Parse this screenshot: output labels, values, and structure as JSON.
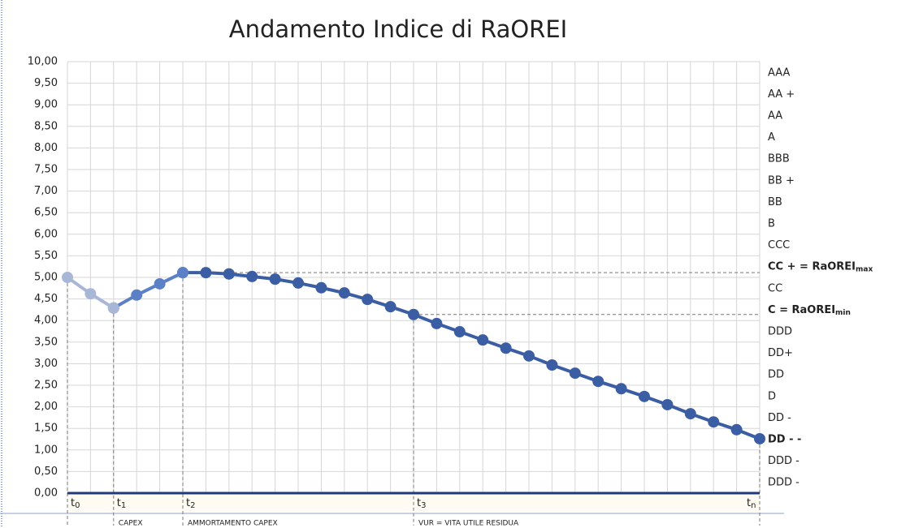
{
  "chart_data": {
    "type": "line",
    "title": "Andamento Indice di RaOREI",
    "categories": [
      null,
      null,
      null,
      null,
      null,
      null,
      null,
      null,
      null,
      null,
      null,
      null,
      null,
      null,
      null,
      null,
      null,
      null,
      null,
      null,
      null,
      null,
      null,
      null,
      null,
      null,
      null,
      null,
      null,
      null,
      null
    ],
    "series": [
      {
        "color": "#a9b7d6",
        "values": [
          5.0,
          4.62,
          4.29,
          null,
          null,
          null,
          null,
          null,
          null,
          null,
          null,
          null,
          null,
          null,
          null,
          null,
          null,
          null,
          null,
          null,
          null,
          null,
          null,
          null,
          null,
          null,
          null,
          null,
          null,
          null,
          null
        ]
      },
      {
        "color": "#5c80c6",
        "values": [
          null,
          null,
          4.29,
          4.59,
          4.85,
          5.11,
          null,
          null,
          null,
          null,
          null,
          null,
          null,
          null,
          null,
          null,
          null,
          null,
          null,
          null,
          null,
          null,
          null,
          null,
          null,
          null,
          null,
          null,
          null,
          null,
          null
        ]
      },
      {
        "color": "#3b5da3",
        "values": [
          null,
          null,
          null,
          null,
          null,
          5.11,
          5.11,
          5.08,
          5.02,
          4.96,
          4.87,
          4.76,
          4.64,
          4.49,
          4.32,
          4.14,
          3.93,
          3.74,
          3.55,
          3.36,
          3.18,
          2.97,
          2.78,
          2.59,
          2.42,
          2.24,
          2.05,
          1.84,
          1.65,
          1.47,
          1.26
        ]
      }
    ],
    "ylim": [
      0,
      10
    ],
    "yticks": [
      {
        "value": 0,
        "label": "0,00"
      },
      {
        "value": 0.5,
        "label": "0,50"
      },
      {
        "value": 1,
        "label": "1,00"
      },
      {
        "value": 1.5,
        "label": "1,50"
      },
      {
        "value": 2,
        "label": "2,00"
      },
      {
        "value": 2.5,
        "label": "2,50"
      },
      {
        "value": 3,
        "label": "3,00"
      },
      {
        "value": 3.5,
        "label": "3,50"
      },
      {
        "value": 4,
        "label": "4,00"
      },
      {
        "value": 4.5,
        "label": "4,50"
      },
      {
        "value": 5,
        "label": "5,00"
      },
      {
        "value": 5.5,
        "label": "5,50"
      },
      {
        "value": 6,
        "label": "6,00"
      },
      {
        "value": 6.5,
        "label": "6,50"
      },
      {
        "value": 7,
        "label": "7,00"
      },
      {
        "value": 7.5,
        "label": "7,50"
      },
      {
        "value": 8,
        "label": "8,00"
      },
      {
        "value": 8.5,
        "label": "8,50"
      },
      {
        "value": 9,
        "label": "9,00"
      },
      {
        "value": 9.5,
        "label": "9,50"
      },
      {
        "value": 10,
        "label": "10,00"
      }
    ],
    "grid": true,
    "ratings": [
      {
        "text": "AAA"
      },
      {
        "text": "AA +"
      },
      {
        "text": "AA"
      },
      {
        "text": "A"
      },
      {
        "text": "BBB"
      },
      {
        "text": "BB +"
      },
      {
        "text": "BB"
      },
      {
        "text": "B"
      },
      {
        "text": "CCC"
      },
      {
        "text": "CC + = RaOREI",
        "sub": "max",
        "bold": true
      },
      {
        "text": "CC"
      },
      {
        "text": "C = RaOREI",
        "sub": "min",
        "bold": true
      },
      {
        "text": "DDD"
      },
      {
        "text": "DD+"
      },
      {
        "text": "DD"
      },
      {
        "text": "D"
      },
      {
        "text": "DD -"
      },
      {
        "text": "DD - -",
        "bold": true,
        "color": "#e0201c"
      },
      {
        "text": "DDD -"
      },
      {
        "text": "DDD -"
      }
    ],
    "time_markers": [
      {
        "index": 0,
        "label": "t",
        "sub": "0"
      },
      {
        "index": 2,
        "label": "t",
        "sub": "1"
      },
      {
        "index": 5,
        "label": "t",
        "sub": "2"
      },
      {
        "index": 15,
        "label": "t",
        "sub": "3"
      },
      {
        "index": 30,
        "label": "t",
        "sub": "n"
      }
    ],
    "reference_points": [
      5,
      15
    ],
    "phases": [
      {
        "marker": 1,
        "label": "CAPEX"
      },
      {
        "marker": 2,
        "label": "AMMORTAMENTO CAPEX"
      },
      {
        "marker": 3,
        "label": "VUR = VITA UTILE RESIDUA"
      }
    ]
  }
}
